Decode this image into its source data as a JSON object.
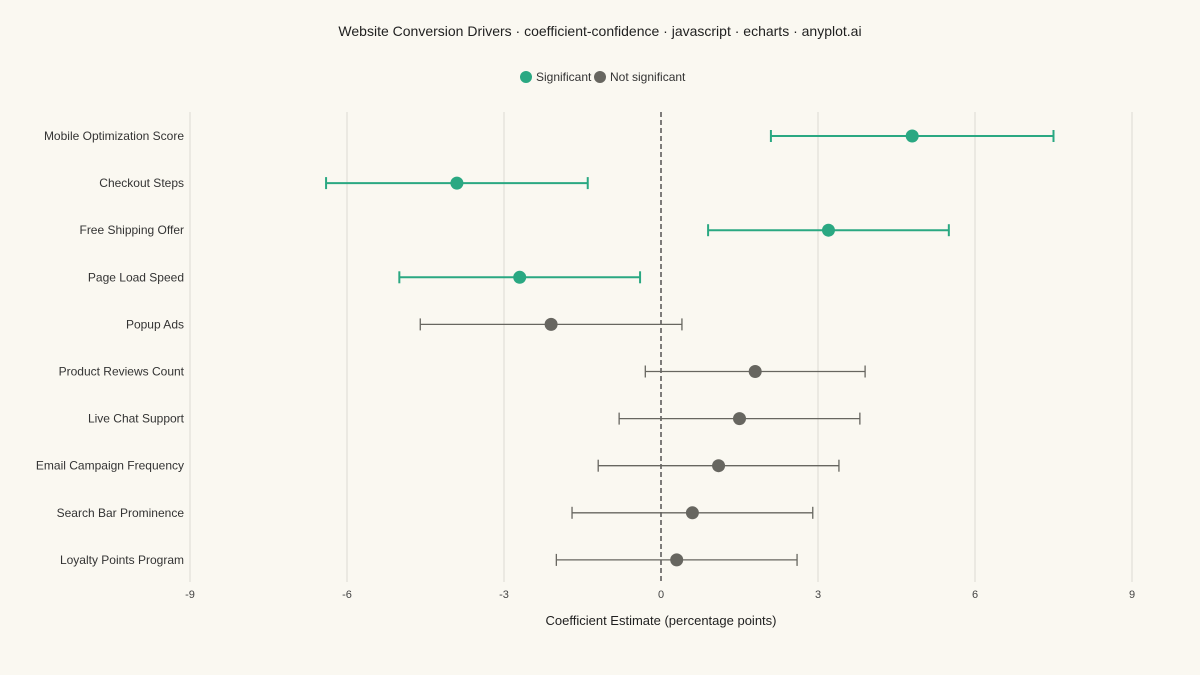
{
  "chart_data": {
    "type": "scatter",
    "subtype": "coefficient-confidence",
    "title": "Website Conversion Drivers · coefficient-confidence · javascript · echarts · anyplot.ai",
    "xlabel": "Coefficient Estimate (percentage points)",
    "ylabel": "",
    "xlim": [
      -9,
      9
    ],
    "xticks": [
      -9,
      -6,
      -3,
      0,
      3,
      6,
      9
    ],
    "reference_line": 0,
    "grid": "vertical",
    "legend": {
      "placement": "top-center",
      "items": [
        {
          "name": "Significant",
          "color": "#2AA882"
        },
        {
          "name": "Not significant",
          "color": "#676660"
        }
      ]
    },
    "categories": [
      "Mobile Optimization Score",
      "Checkout Steps",
      "Free Shipping Offer",
      "Page Load Speed",
      "Popup Ads",
      "Product Reviews Count",
      "Live Chat Support",
      "Email Campaign Frequency",
      "Search Bar Prominence",
      "Loyalty Points Program"
    ],
    "series": [
      {
        "name": "Significant",
        "color": "#2AA882",
        "points": [
          {
            "category": "Mobile Optimization Score",
            "estimate": 4.8,
            "lower": 2.1,
            "upper": 7.5
          },
          {
            "category": "Checkout Steps",
            "estimate": -3.9,
            "lower": -6.4,
            "upper": -1.4
          },
          {
            "category": "Free Shipping Offer",
            "estimate": 3.2,
            "lower": 0.9,
            "upper": 5.5
          },
          {
            "category": "Page Load Speed",
            "estimate": -2.7,
            "lower": -5.0,
            "upper": -0.4
          }
        ]
      },
      {
        "name": "Not significant",
        "color": "#676660",
        "points": [
          {
            "category": "Popup Ads",
            "estimate": -2.1,
            "lower": -4.6,
            "upper": 0.4
          },
          {
            "category": "Product Reviews Count",
            "estimate": 1.8,
            "lower": -0.3,
            "upper": 3.9
          },
          {
            "category": "Live Chat Support",
            "estimate": 1.5,
            "lower": -0.8,
            "upper": 3.8
          },
          {
            "category": "Email Campaign Frequency",
            "estimate": 1.1,
            "lower": -1.2,
            "upper": 3.4
          },
          {
            "category": "Search Bar Prominence",
            "estimate": 0.6,
            "lower": -1.7,
            "upper": 2.9
          },
          {
            "category": "Loyalty Points Program",
            "estimate": 0.3,
            "lower": -2.0,
            "upper": 2.6
          }
        ]
      }
    ]
  }
}
